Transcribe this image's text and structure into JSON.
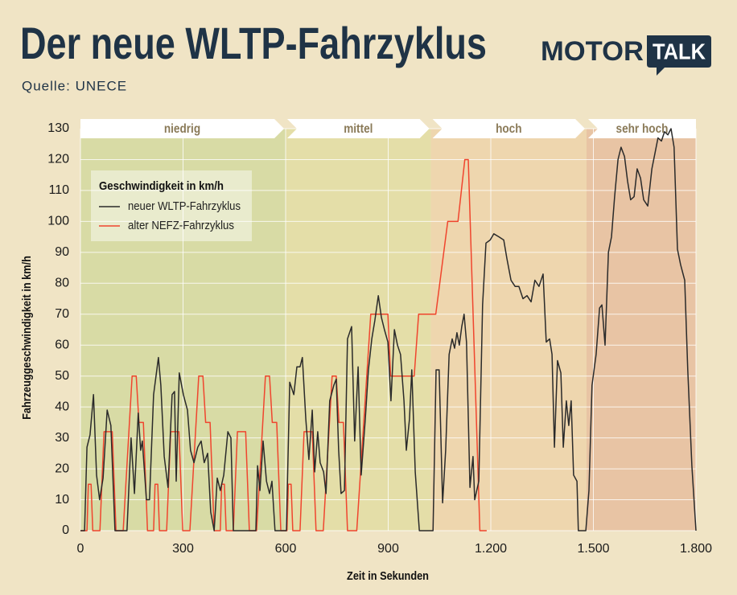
{
  "chart_data": {
    "type": "line",
    "title": "Der neue WLTP-Fahrzyklus",
    "source": "Quelle: UNECE",
    "logo": [
      "MOTOR",
      "TALK"
    ],
    "xlabel": "Zeit in Sekunden",
    "ylabel": "Fahrzeuggeschwindigkeit in km/h",
    "legend_title": "Geschwindigkeit in km/h",
    "legend": "upper left",
    "grid": true,
    "xlim": [
      0,
      1800
    ],
    "ylim": [
      0,
      130
    ],
    "xticks": [
      0,
      300,
      600,
      900,
      {
        "value": 1200,
        "label": "1.200"
      },
      {
        "value": 1500,
        "label": "1.500"
      },
      {
        "value": 1800,
        "label": "1.800"
      }
    ],
    "yticks": [
      0,
      10,
      20,
      30,
      40,
      50,
      60,
      70,
      80,
      90,
      100,
      110,
      120,
      130
    ],
    "phases": [
      {
        "label": "niedrig",
        "start": 0,
        "end": 600,
        "color": "#d8dba5"
      },
      {
        "label": "mittel",
        "start": 600,
        "end": 1025,
        "color": "#e4dea8"
      },
      {
        "label": "hoch",
        "start": 1025,
        "end": 1480,
        "color": "#eed6ae"
      },
      {
        "label": "sehr hoch",
        "start": 1480,
        "end": 1800,
        "color": "#e8c4a4"
      }
    ],
    "series": [
      {
        "name": "neuer WLTP-Fahrzyklus",
        "color": "#2a2a2a",
        "x": [
          0,
          12,
          19,
          28,
          38,
          47,
          56,
          66,
          78,
          89,
          101,
          136,
          148,
          158,
          169,
          176,
          181,
          193,
          202,
          214,
          228,
          235,
          245,
          256,
          268,
          275,
          280,
          289,
          301,
          313,
          322,
          332,
          343,
          353,
          362,
          372,
          381,
          391,
          400,
          409,
          419,
          431,
          440,
          447,
          513,
          518,
          525,
          534,
          544,
          553,
          560,
          569,
          602,
          612,
          624,
          633,
          642,
          649,
          659,
          668,
          678,
          685,
          694,
          701,
          711,
          718,
          729,
          741,
          748,
          755,
          762,
          772,
          781,
          793,
          802,
          812,
          821,
          833,
          842,
          852,
          861,
          871,
          880,
          889,
          899,
          908,
          918,
          927,
          936,
          946,
          953,
          962,
          969,
          979,
          991,
          1031,
          1040,
          1049,
          1059,
          1068,
          1078,
          1087,
          1094,
          1101,
          1108,
          1115,
          1122,
          1129,
          1139,
          1148,
          1153,
          1165,
          1176,
          1186,
          1198,
          1209,
          1224,
          1238,
          1247,
          1259,
          1271,
          1282,
          1294,
          1306,
          1318,
          1329,
          1341,
          1353,
          1362,
          1372,
          1379,
          1386,
          1395,
          1405,
          1412,
          1421,
          1428,
          1435,
          1442,
          1452,
          1456,
          1478,
          1487,
          1496,
          1508,
          1518,
          1525,
          1534,
          1544,
          1553,
          1562,
          1572,
          1581,
          1591,
          1600,
          1609,
          1619,
          1628,
          1638,
          1647,
          1659,
          1671,
          1680,
          1689,
          1699,
          1708,
          1718,
          1727,
          1736,
          1746,
          1755,
          1767,
          1776,
          1788,
          1800
        ],
        "values": [
          0,
          0,
          27,
          31,
          44,
          18,
          10,
          17,
          39,
          34,
          0,
          0,
          30,
          12,
          38,
          26,
          29,
          10,
          10,
          44,
          56,
          47,
          24,
          14,
          44,
          45,
          16,
          51,
          44,
          39,
          26,
          22,
          27,
          29,
          22,
          25,
          6,
          0,
          17,
          13,
          18,
          32,
          30,
          0,
          0,
          21,
          13,
          29,
          16,
          12,
          16,
          0,
          0,
          48,
          44,
          53,
          53,
          56,
          36,
          23,
          39,
          19,
          32,
          22,
          19,
          12,
          42,
          47,
          49,
          26,
          12,
          13,
          62,
          66,
          29,
          53,
          18,
          36,
          52,
          62,
          68,
          76,
          69,
          65,
          61,
          42,
          65,
          60,
          57,
          42,
          26,
          36,
          52,
          19,
          0,
          0,
          52,
          52,
          9,
          26,
          57,
          62,
          59,
          64,
          60,
          66,
          70,
          61,
          14,
          24,
          10,
          16,
          73,
          93,
          94,
          96,
          95,
          94,
          88,
          81,
          79,
          79,
          75,
          76,
          74,
          81,
          79,
          83,
          61,
          62,
          57,
          27,
          55,
          51,
          27,
          42,
          34,
          42,
          18,
          16,
          0,
          0,
          13,
          47,
          57,
          72,
          73,
          60,
          90,
          95,
          108,
          120,
          124,
          121,
          113,
          107,
          108,
          117,
          114,
          107,
          105,
          117,
          122,
          127,
          126,
          129,
          128,
          130,
          124,
          91,
          86,
          81,
          52,
          21,
          0
        ]
      },
      {
        "name": "alter NEFZ-Fahrzyklus",
        "color": "#f0452e",
        "x": [
          0,
          19,
          23,
          31,
          36,
          57,
          69,
          93,
          104,
          125,
          151,
          163,
          171,
          184,
          196,
          214,
          218,
          226,
          231,
          252,
          264,
          288,
          299,
          320,
          346,
          358,
          366,
          379,
          391,
          409,
          413,
          421,
          426,
          447,
          459,
          483,
          494,
          515,
          541,
          553,
          561,
          574,
          586,
          604,
          608,
          616,
          621,
          642,
          654,
          678,
          689,
          710,
          736,
          748,
          756,
          769,
          781,
          808,
          849,
          899,
          907,
          976,
          989,
          1039,
          1074,
          1104,
          1124,
          1134,
          1168,
          1188
        ],
        "values": [
          0,
          0,
          15,
          15,
          0,
          0,
          32,
          32,
          0,
          0,
          50,
          50,
          35,
          35,
          0,
          0,
          15,
          15,
          0,
          0,
          32,
          32,
          0,
          0,
          50,
          50,
          35,
          35,
          0,
          0,
          15,
          15,
          0,
          0,
          32,
          32,
          0,
          0,
          50,
          50,
          35,
          35,
          0,
          0,
          15,
          15,
          0,
          0,
          32,
          32,
          0,
          0,
          50,
          50,
          35,
          35,
          0,
          0,
          70,
          70,
          50,
          50,
          70,
          70,
          100,
          100,
          120,
          120,
          0,
          0
        ]
      }
    ]
  }
}
